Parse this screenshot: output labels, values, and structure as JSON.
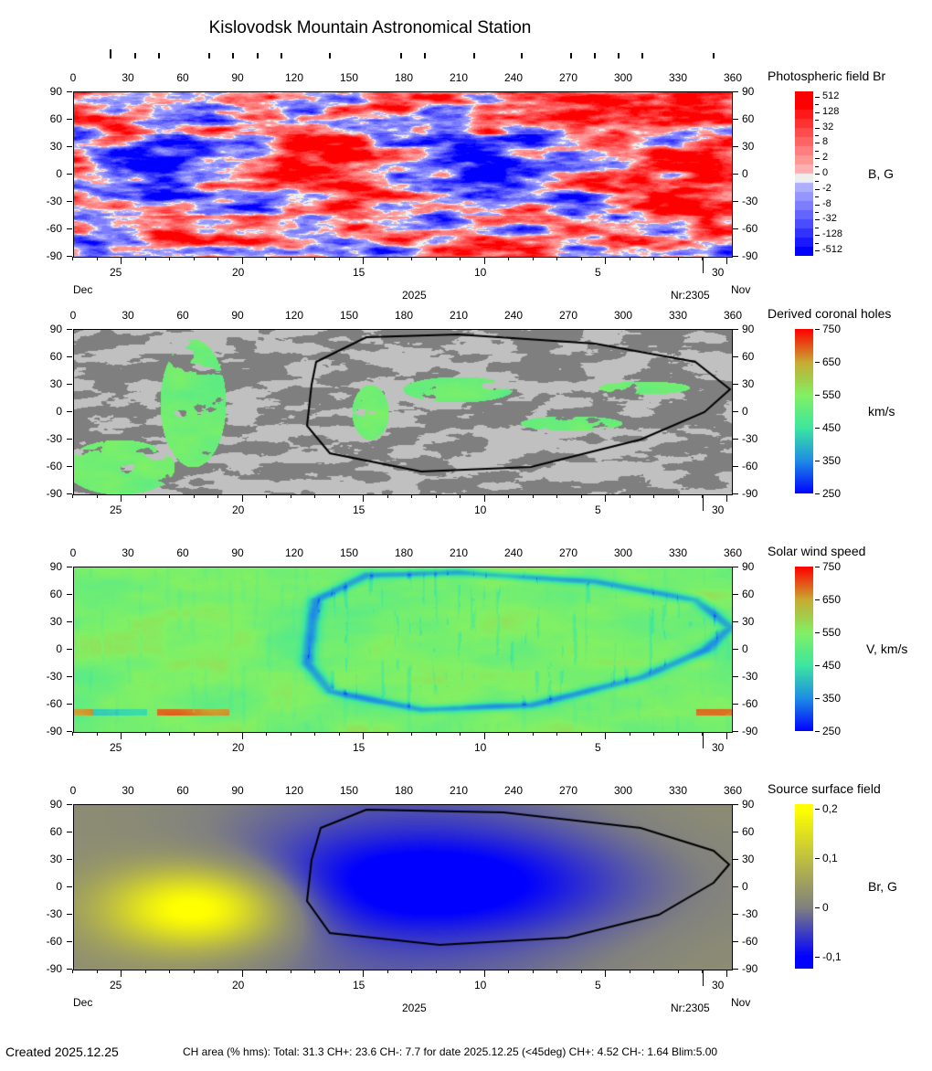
{
  "title": "Kislovodsk Mountain Astronomical Station",
  "top_marks_lon": [
    20,
    33.5,
    46.5,
    74,
    87,
    100.5,
    113.5,
    140,
    179,
    192,
    219,
    245,
    272,
    285,
    298,
    311,
    350
  ],
  "lon_ticks": [
    "0",
    "30",
    "60",
    "90",
    "120",
    "150",
    "180",
    "210",
    "240",
    "270",
    "300",
    "330",
    "360"
  ],
  "lat_ticks": [
    "90",
    "60",
    "30",
    "0",
    "-30",
    "-60",
    "-90"
  ],
  "date_ticks": [
    "25",
    "20",
    "15",
    "10",
    "5",
    "30"
  ],
  "date_labels": {
    "month_left": "Dec",
    "year": "2025",
    "rotation": "Nr:2305",
    "month_right": "Nov"
  },
  "footer": {
    "created": "Created  2025.12.25",
    "stats": "CH area (% hms): Total: 31.3 CH+: 23.6   CH-: 7.7 for date 2025.12.25 (<45deg) CH+: 4.52    CH-: 1.64 Blim:5.00"
  },
  "chart_data": [
    {
      "type": "heatmap",
      "title": "Photospheric field Br",
      "colorbar_label": "B, G",
      "colorbar_ticks": [
        "512",
        "128",
        "32",
        "8",
        "2",
        "0",
        "-2",
        "-8",
        "-32",
        "-128",
        "-512"
      ],
      "colors": {
        "positive": "#ff0000",
        "zero": "#eeeeee",
        "negative": "#0000ff"
      },
      "xlim": [
        0,
        360
      ],
      "ylim": [
        -90,
        90
      ]
    },
    {
      "type": "heatmap",
      "title": "Derived coronal holes",
      "colorbar_label": "km/s",
      "colorbar_ticks": [
        "750",
        "650",
        "550",
        "450",
        "350",
        "250"
      ],
      "colors": {
        "light": "#c0c0c0",
        "dark": "#7f7f7f",
        "hole": "#80f080",
        "contour": "#000000"
      },
      "xlim": [
        0,
        360
      ],
      "ylim": [
        -90,
        90
      ],
      "contour_lonlat": [
        [
          132.5,
          55
        ],
        [
          160,
          82
        ],
        [
          210,
          85
        ],
        [
          285,
          75
        ],
        [
          340,
          55
        ],
        [
          359,
          25
        ],
        [
          345,
          0
        ],
        [
          310,
          -30
        ],
        [
          250,
          -60
        ],
        [
          190,
          -65
        ],
        [
          140,
          -45
        ],
        [
          127.5,
          -15
        ],
        [
          130,
          30
        ]
      ]
    },
    {
      "type": "heatmap",
      "title": "Solar wind speed",
      "colorbar_label": "V, km/s",
      "colorbar_ticks": [
        "750",
        "650",
        "550",
        "450",
        "350",
        "250"
      ],
      "xlim": [
        0,
        360
      ],
      "ylim": [
        -90,
        90
      ]
    },
    {
      "type": "heatmap",
      "title": "Source surface field",
      "colorbar_label": "Br, G",
      "colorbar_ticks": [
        "0,2",
        "0,1",
        "0",
        "-0,1"
      ],
      "colors": {
        "max": "#ffff00",
        "zero": "#808080",
        "min": "#0000ff"
      },
      "xlim": [
        0,
        360
      ],
      "ylim": [
        -90,
        90
      ],
      "contour_lonlat": [
        [
          135,
          65
        ],
        [
          160,
          85
        ],
        [
          235,
          82
        ],
        [
          310,
          65
        ],
        [
          350,
          40
        ],
        [
          358.5,
          25
        ],
        [
          350,
          5
        ],
        [
          320,
          -30
        ],
        [
          270,
          -55
        ],
        [
          200,
          -63
        ],
        [
          140,
          -50
        ],
        [
          127.5,
          -15
        ],
        [
          130,
          30
        ]
      ]
    }
  ]
}
